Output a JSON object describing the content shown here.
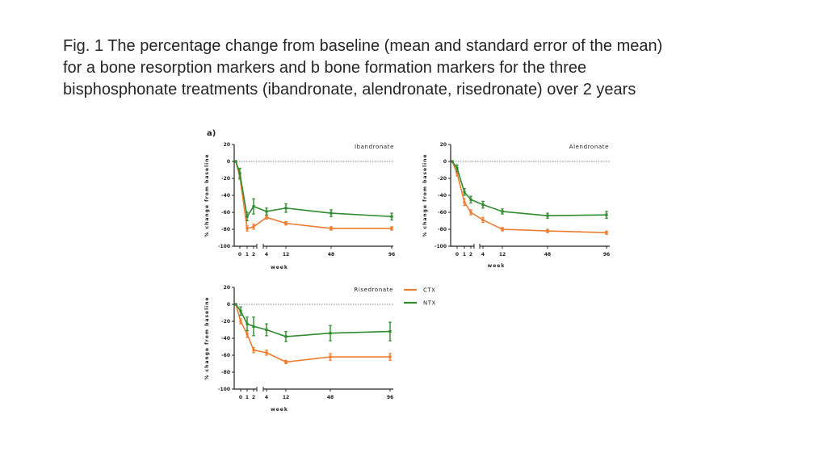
{
  "caption": {
    "line1": "Fig. 1 The percentage change from baseline (mean and standard error of the mean)",
    "line2": "for a bone resorption markers and b bone formation markers for the three",
    "line3": "bisphosphonate treatments (ibandronate, alendronate, risedronate) over 2 years"
  },
  "panel_label": "a)",
  "legend": [
    {
      "name": "CTX",
      "color": "#ed7d31"
    },
    {
      "name": "NTX",
      "color": "#2e8b2e"
    }
  ],
  "chart_data": [
    {
      "type": "line",
      "title": "Ibandronate",
      "xlabel": "week",
      "ylabel": "% change from baseline",
      "ylim": [
        -100,
        20
      ],
      "yticks": [
        "20",
        "0",
        "-20",
        "-40",
        "-60",
        "-80",
        "-100"
      ],
      "xticks": [
        "0",
        "1",
        "2",
        "4",
        "12",
        "48",
        "96"
      ],
      "series": [
        {
          "name": "CTX",
          "color": "#ed7d31",
          "values": [
            0,
            -18,
            -79,
            -77,
            -66,
            -73,
            -79,
            -79
          ],
          "err": [
            0,
            3,
            3,
            3,
            2,
            2,
            2,
            2
          ]
        },
        {
          "name": "NTX",
          "color": "#2e8b2e",
          "values": [
            0,
            -14,
            -65,
            -53,
            -59,
            -55,
            -61,
            -65
          ],
          "err": [
            0,
            6,
            5,
            9,
            4,
            5,
            4,
            4
          ]
        }
      ]
    },
    {
      "type": "line",
      "title": "Alendronate",
      "xlabel": "week",
      "ylabel": "% change from baseline",
      "ylim": [
        -100,
        20
      ],
      "yticks": [
        "20",
        "0",
        "-20",
        "-40",
        "-60",
        "-80",
        "-100"
      ],
      "xticks": [
        "0",
        "1",
        "2",
        "4",
        "12",
        "48",
        "96"
      ],
      "series": [
        {
          "name": "CTX",
          "color": "#ed7d31",
          "values": [
            0,
            -14,
            -48,
            -60,
            -69,
            -80,
            -82,
            -84
          ],
          "err": [
            0,
            3,
            4,
            3,
            3,
            2,
            2,
            2
          ]
        },
        {
          "name": "NTX",
          "color": "#2e8b2e",
          "values": [
            0,
            -8,
            -36,
            -45,
            -51,
            -59,
            -64,
            -63
          ],
          "err": [
            0,
            4,
            4,
            4,
            4,
            3,
            3,
            4
          ]
        }
      ]
    },
    {
      "type": "line",
      "title": "Risedronate",
      "xlabel": "week",
      "ylabel": "% change from baseline",
      "ylim": [
        -100,
        20
      ],
      "yticks": [
        "20",
        "0",
        "-20",
        "-40",
        "-60",
        "-80",
        "-100"
      ],
      "xticks": [
        "0",
        "1",
        "2",
        "4",
        "12",
        "48",
        "96"
      ],
      "series": [
        {
          "name": "CTX",
          "color": "#ed7d31",
          "values": [
            0,
            -20,
            -35,
            -54,
            -57,
            -68,
            -62,
            -62
          ],
          "err": [
            0,
            3,
            4,
            3,
            3,
            2,
            4,
            4
          ]
        },
        {
          "name": "NTX",
          "color": "#2e8b2e",
          "values": [
            0,
            -8,
            -23,
            -26,
            -30,
            -38,
            -34,
            -32
          ],
          "err": [
            0,
            5,
            8,
            11,
            7,
            6,
            9,
            11
          ]
        }
      ]
    }
  ]
}
